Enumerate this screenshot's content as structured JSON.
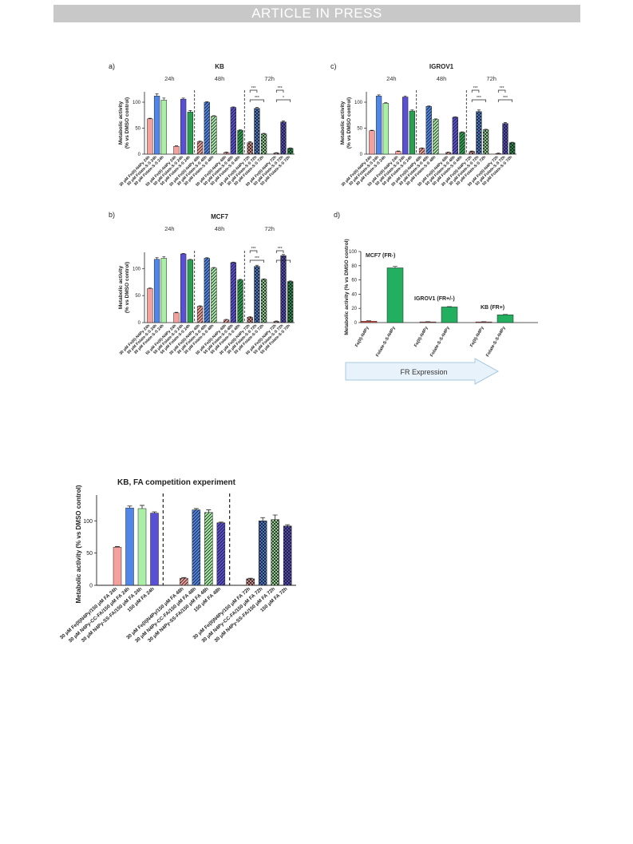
{
  "header": {
    "banner": "ARTICLE IN PRESS"
  },
  "chart_data": [
    {
      "id": "a",
      "panel_label": "a)",
      "type": "bar",
      "title": "KB",
      "ylabel_line1": "Metabolic activity",
      "ylabel_line2": "(% vs DMSO control)",
      "ylim": [
        0,
        120
      ],
      "yticks": [
        0,
        50,
        100
      ],
      "time_points": [
        "24h",
        "48h",
        "72h"
      ],
      "categories": [
        "30 μM Fe(II)-N4Py 24h",
        "30 μM Folate-S-S 24h",
        "30 μM Folate-S-S 24h",
        "50 μM Fe(II)-N4Py 24h",
        "50 μM Folate-S-S 24h",
        "50 μM Folate-S-S 24h",
        "30 μM Fe(II)-N4Py 48h",
        "30 μM Folate-S-S 48h",
        "30 μM Folate-S-S 48h",
        "50 μM Fe(II)-N4Py 48h",
        "50 μM Folate-S-S 48h",
        "50 μM Folate-S-S 48h",
        "30 μM Fe(II)-N4Py 72h",
        "30 μM Folate-S-S 72h",
        "30 μM Folate-S-S 72h",
        "50 μM Fe(II)-N4Py 72h",
        "50 μM Folate-S-S 72h",
        "50 μM Folate-S-S 72h"
      ],
      "values": [
        68,
        112,
        104,
        15,
        106,
        81,
        24,
        100,
        73,
        3,
        90,
        46,
        22,
        88,
        39,
        2,
        62,
        11
      ],
      "errors": [
        1,
        4,
        4,
        1,
        2,
        3,
        1,
        1,
        1,
        1,
        1,
        1,
        2,
        2,
        1,
        1,
        2,
        1
      ],
      "significance": [
        {
          "from": 12,
          "to": 13,
          "text": "***"
        },
        {
          "from": 12,
          "to": 14,
          "text": "***"
        },
        {
          "from": 15,
          "to": 16,
          "text": "***"
        },
        {
          "from": 15,
          "to": 17,
          "text": "*"
        }
      ]
    },
    {
      "id": "b",
      "panel_label": "b)",
      "type": "bar",
      "title": "MCF7",
      "ylabel_line1": "Metabolic activity",
      "ylabel_line2": "(% vs DMSO control)",
      "ylim": [
        0,
        130
      ],
      "yticks": [
        0,
        50,
        100
      ],
      "time_points": [
        "24h",
        "48h",
        "72h"
      ],
      "categories": [
        "30 μM Fe(II)-N4Py 24h",
        "30 μM Folate-S-S 24h",
        "30 μM Folate-S-S 24h",
        "50 μM Fe(II)-N4Py 24h",
        "50 μM Folate-S-S 24h",
        "50 μM Folate-S-S 24h",
        "30 μM Fe(II)-N4Py 48h",
        "30 μM Folate-S-S 48h",
        "30 μM Folate-S-S 48h",
        "50 μM Fe(II)-N4Py 48h",
        "50 μM Folate-S-S 48h",
        "50 μM Folate-S-S 48h",
        "30 μM Fe(II)-N4Py 72h",
        "30 μM Folate-S-S 72h",
        "30 μM Folate-S-S 72h",
        "50 μM Fe(II)-N4Py 72h",
        "50 μM Folate-S-S 72h",
        "50 μM Folate-S-S 72h"
      ],
      "values": [
        63,
        117,
        119,
        18,
        127,
        116,
        30,
        119,
        101,
        5,
        111,
        79,
        10,
        104,
        80,
        2,
        124,
        76
      ],
      "errors": [
        1,
        3,
        3,
        1,
        1,
        1,
        1,
        1,
        1,
        1,
        1,
        1,
        1,
        2,
        1,
        1,
        2,
        1
      ],
      "significance": [
        {
          "from": 12,
          "to": 13,
          "text": "***"
        },
        {
          "from": 12,
          "to": 14,
          "text": "***"
        },
        {
          "from": 15,
          "to": 16,
          "text": "***"
        },
        {
          "from": 15,
          "to": 17,
          "text": "***"
        }
      ]
    },
    {
      "id": "c",
      "panel_label": "c)",
      "type": "bar",
      "title": "IGROV1",
      "ylabel_line1": "Metabolic activity",
      "ylabel_line2": "(% vs DMSO control)",
      "ylim": [
        0,
        120
      ],
      "yticks": [
        0,
        50,
        100
      ],
      "time_points": [
        "24h",
        "48h",
        "72h"
      ],
      "categories": [
        "30 μM Fe(II)-N4Py 24h",
        "30 μM Folate-S-S 24h",
        "30 μM Folate-S-S 24h",
        "50 μM Fe(II)-N4Py 24h",
        "50 μM Folate-S-S 24h",
        "50 μM Folate-S-S 24h",
        "30 μM Fe(II)-N4Py 48h",
        "30 μM Folate-S-S 48h",
        "30 μM Folate-S-S 48h",
        "50 μM Fe(II)-N4Py 48h",
        "50 μM Folate-S-S 48h",
        "50 μM Folate-S-S 48h",
        "30 μM Fe(II)-N4Py 72h",
        "30 μM Folate-S-S 72h",
        "30 μM Folate-S-S 72h",
        "50 μM Fe(II)-N4Py 72h",
        "50 μM Folate-S-S 72h",
        "50 μM Folate-S-S 72h"
      ],
      "values": [
        45,
        112,
        98,
        5,
        110,
        83,
        11,
        92,
        67,
        3,
        71,
        42,
        5,
        82,
        47,
        1,
        59,
        22
      ],
      "errors": [
        1,
        2,
        1,
        1,
        2,
        2,
        1,
        1,
        1,
        1,
        1,
        1,
        1,
        3,
        1,
        1,
        2,
        1
      ],
      "significance": [
        {
          "from": 12,
          "to": 13,
          "text": "***"
        },
        {
          "from": 12,
          "to": 14,
          "text": "***"
        },
        {
          "from": 15,
          "to": 16,
          "text": "***"
        },
        {
          "from": 15,
          "to": 17,
          "text": "***"
        }
      ]
    },
    {
      "id": "d",
      "panel_label": "d)",
      "type": "bar",
      "ylabel": "Metabolic activity (% vs DMSO control)",
      "ylim": [
        0,
        100
      ],
      "yticks": [
        0,
        20,
        40,
        60,
        80,
        100
      ],
      "groups": [
        "MCF7 (FR-)",
        "IGROV1 (FR+/-)",
        "KB (FR+)"
      ],
      "categories": [
        "Fe(II)-N4Py",
        "Folate-S-S-N4Py",
        "Fe(II)-N4Py",
        "Folate-S-S-N4Py",
        "Fe(II)-N4Py",
        "Folate-S-S-N4Py"
      ],
      "values": [
        2,
        77,
        1,
        22,
        1,
        11
      ],
      "errors": [
        0.5,
        2,
        0.3,
        0.5,
        0.3,
        0.4
      ],
      "arrow_label": "FR Expression"
    },
    {
      "id": "e",
      "type": "bar",
      "title": "KB, FA competition experiment",
      "ylabel": "Metabolic activity (% vs DMSO control)",
      "ylim": [
        0,
        140
      ],
      "yticks": [
        0,
        50,
        100
      ],
      "categories": [
        "30 μM Fe(II)N4Py/150 μM FA 24h",
        "30 μM N4Py-CC-FA/150 μM FA 24h",
        "30 μM N4Py-SS-FA/150 μM FA 24h",
        "150 μM FA 24h",
        "30 μM Fe(II)N4Py/150 μM FA 48h",
        "30 μM N4Py-CC-FA/150 μM FA 48h",
        "30 μM N4Py-SS-FA/150 μM FA 48h",
        "150 μM FA 48h",
        "30 μM Fe(II)N4Py/150 μM FA 72h",
        "30 μM N4Py-CC-FA/150 μM FA 72h",
        "30 μM N4Py-SS-FA/150 μM FA 72h",
        "150 μM FA 72h"
      ],
      "values": [
        59,
        120,
        119,
        112,
        11,
        117,
        113,
        97,
        10,
        100,
        102,
        92
      ],
      "errors": [
        1,
        3,
        5,
        2,
        1,
        2,
        4,
        1,
        1,
        5,
        7,
        2
      ]
    }
  ],
  "colors": {
    "salmon": "#f4a09c",
    "blue": "#4f86e8",
    "green": "#a9f0a6",
    "purple": "#5a50d6",
    "darkgreen": "#28a04e",
    "d_green": "#22b060",
    "d_red": "#e0534d",
    "arrow_fill": "#e8f2fa",
    "arrow_stroke": "#a9c9e0"
  }
}
